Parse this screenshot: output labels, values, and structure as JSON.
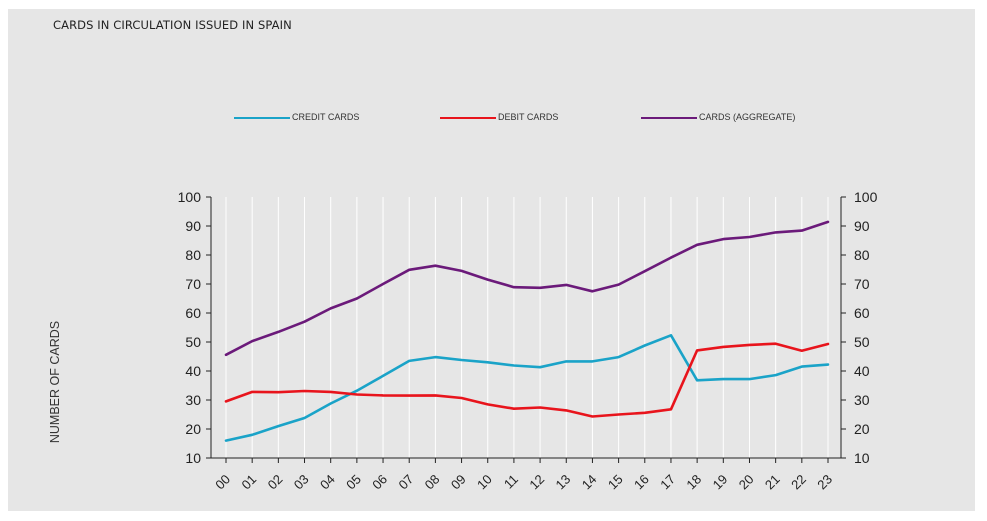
{
  "chart_data": {
    "type": "line",
    "title": "CARDS IN CIRCULATION ISSUED IN SPAIN",
    "ylabel": "NUMBER OF CARDS",
    "xlabel": "",
    "ylim": [
      10,
      100
    ],
    "yticks": [
      10,
      20,
      30,
      40,
      50,
      60,
      70,
      80,
      90,
      100
    ],
    "grid": "vertical",
    "legend_position": "top",
    "categories": [
      "00",
      "01",
      "02",
      "03",
      "04",
      "05",
      "06",
      "07",
      "08",
      "09",
      "10",
      "11",
      "12",
      "13",
      "14",
      "15",
      "16",
      "17",
      "18",
      "19",
      "20",
      "21",
      "22",
      "23"
    ],
    "series": [
      {
        "name": "CREDIT CARDS",
        "color": "#1aa3c8",
        "values": [
          16,
          18,
          21,
          23.8,
          28.8,
          33.2,
          38.3,
          43.5,
          44.8,
          43.8,
          43,
          41.9,
          41.3,
          43.3,
          43.3,
          44.8,
          48.8,
          52.3,
          36.8,
          37.2,
          37.2,
          38.6,
          41.5,
          42.2
        ]
      },
      {
        "name": "DEBIT CARDS",
        "color": "#e8141c",
        "values": [
          29.5,
          32.8,
          32.7,
          33.1,
          32.8,
          31.9,
          31.6,
          31.5,
          31.6,
          30.7,
          28.5,
          27,
          27.4,
          26.4,
          24.3,
          25,
          25.6,
          26.8,
          47.1,
          48.3,
          49,
          49.4,
          47,
          49.3
        ]
      },
      {
        "name": "CARDS (AGGREGATE)",
        "color": "#6b1a7a",
        "values": [
          45.6,
          50.3,
          53.5,
          57,
          61.6,
          65,
          70,
          74.9,
          76.3,
          74.5,
          71.5,
          68.9,
          68.7,
          69.7,
          67.5,
          69.8,
          74.4,
          79.1,
          83.5,
          85.5,
          86.2,
          87.8,
          88.4,
          91.4
        ]
      }
    ]
  }
}
